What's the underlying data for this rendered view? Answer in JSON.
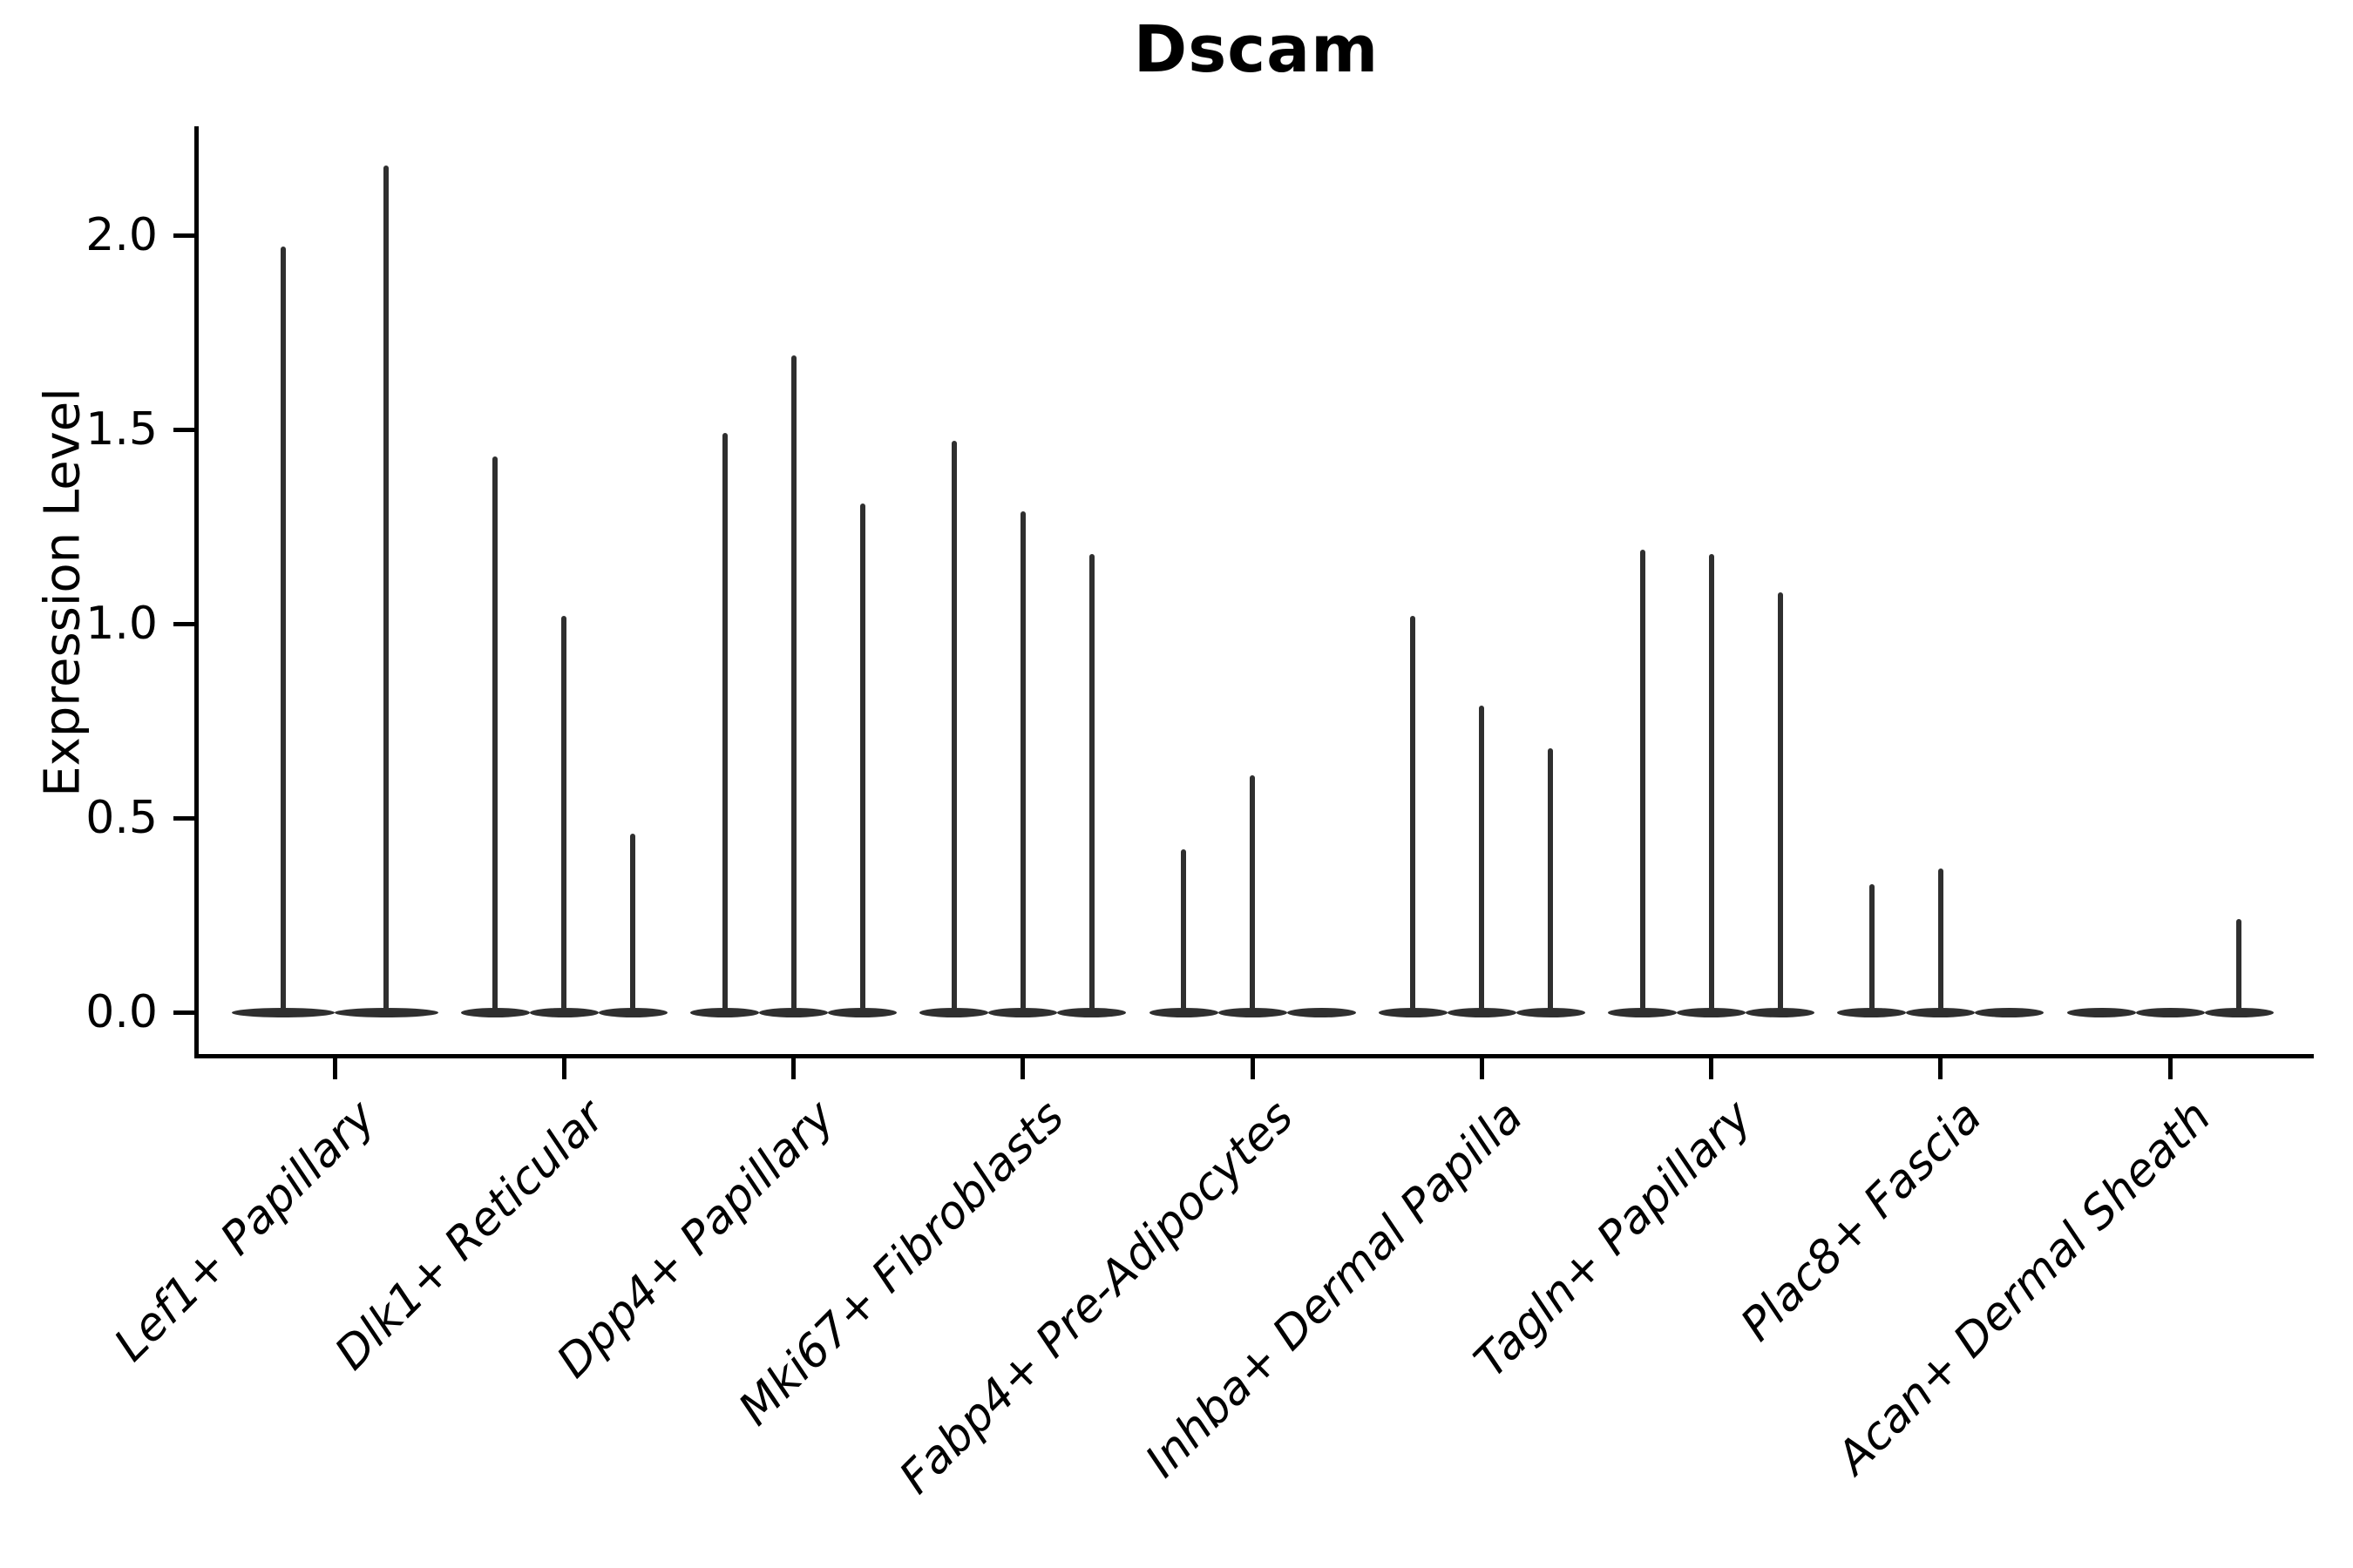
{
  "chart_data": {
    "type": "violin",
    "title": "Dscam",
    "subtitle": "",
    "xlabel": "",
    "ylabel": "Expression Level",
    "ytick_labels": [
      "0.0",
      "0.5",
      "1.0",
      "1.5",
      "2.0"
    ],
    "ytick_values": [
      0.0,
      0.5,
      1.0,
      1.5,
      2.0
    ],
    "ylim": [
      -0.11,
      2.27
    ],
    "grid": false,
    "legend_position": "none",
    "baseline_value": 0.0,
    "violin_color": "#2f2f2f",
    "axis_color": "#000000",
    "categories": [
      "Lef1+ Papillary",
      "Dlk1+ Reticular",
      "Dpp4+ Papillary",
      "Mki67+ Fibroblasts",
      "Fabp4+ Pre-Adipocytes",
      "Inhba+ Dermal Papilla",
      "Tagln+ Papillary",
      "Plac8+ Fascia",
      "Acan+ Dermal Sheath"
    ],
    "groups": [
      {
        "category": "Lef1+ Papillary",
        "violin_max_values": [
          1.97,
          2.18
        ]
      },
      {
        "category": "Dlk1+ Reticular",
        "violin_max_values": [
          1.43,
          1.02,
          0.46
        ]
      },
      {
        "category": "Dpp4+ Papillary",
        "violin_max_values": [
          1.49,
          1.69,
          1.31
        ]
      },
      {
        "category": "Mki67+ Fibroblasts",
        "violin_max_values": [
          1.47,
          1.29,
          1.18
        ]
      },
      {
        "category": "Fabp4+ Pre-Adipocytes",
        "violin_max_values": [
          0.42,
          0.61,
          0.0
        ]
      },
      {
        "category": "Inhba+ Dermal Papilla",
        "violin_max_values": [
          1.02,
          0.79,
          0.68
        ]
      },
      {
        "category": "Tagln+ Papillary",
        "violin_max_values": [
          1.19,
          1.18,
          1.08
        ]
      },
      {
        "category": "Plac8+ Fascia",
        "violin_max_values": [
          0.33,
          0.37,
          0.0
        ]
      },
      {
        "category": "Acan+ Dermal Sheath",
        "violin_max_values": [
          0.0,
          0.0,
          0.24
        ]
      }
    ]
  }
}
